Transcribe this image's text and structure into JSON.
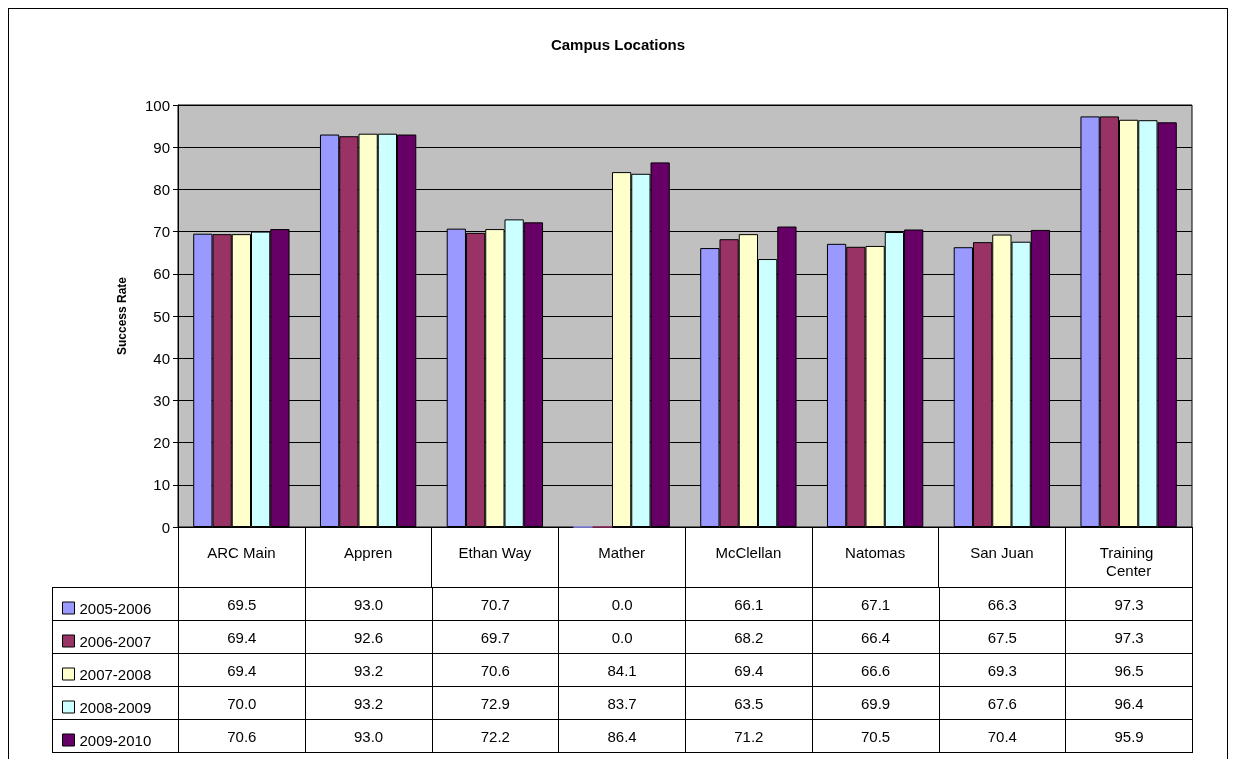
{
  "chart_data": {
    "type": "bar",
    "title": "Campus Locations",
    "ylabel": "Success Rate",
    "categories": [
      "ARC Main",
      "Appren",
      "Ethan Way",
      "Mather",
      "McClellan",
      "Natomas",
      "San Juan",
      "Training Center"
    ],
    "ylim": [
      0,
      100
    ],
    "yticks": [
      0,
      10,
      20,
      30,
      40,
      50,
      60,
      70,
      80,
      90,
      100
    ],
    "grid": "y",
    "legend": "bottom left",
    "series": [
      {
        "name": "2005-2006",
        "color": "#9999ff",
        "values": [
          69.5,
          93.0,
          70.7,
          0.0,
          66.1,
          67.1,
          66.3,
          97.3
        ],
        "value_labels": [
          "69.5",
          "93.0",
          "70.7",
          "0.0",
          "66.1",
          "67.1",
          "66.3",
          "97.3"
        ]
      },
      {
        "name": "2006-2007",
        "color": "#993366",
        "values": [
          69.4,
          92.6,
          69.7,
          0.0,
          68.2,
          66.4,
          67.5,
          97.3
        ],
        "value_labels": [
          "69.4",
          "92.6",
          "69.7",
          "0.0",
          "68.2",
          "66.4",
          "67.5",
          "97.3"
        ]
      },
      {
        "name": "2007-2008",
        "color": "#ffffcc",
        "values": [
          69.4,
          93.2,
          70.6,
          84.1,
          69.4,
          66.6,
          69.3,
          96.5
        ],
        "value_labels": [
          "69.4",
          "93.2",
          "70.6",
          "84.1",
          "69.4",
          "66.6",
          "69.3",
          "96.5"
        ]
      },
      {
        "name": "2008-2009",
        "color": "#ccffff",
        "values": [
          70.0,
          93.2,
          72.9,
          83.7,
          63.5,
          69.9,
          67.6,
          96.4
        ],
        "value_labels": [
          "70.0",
          "93.2",
          "72.9",
          "83.7",
          "63.5",
          "69.9",
          "67.6",
          "96.4"
        ]
      },
      {
        "name": "2009-2010",
        "color": "#660066",
        "values": [
          70.6,
          93.0,
          72.2,
          86.4,
          71.2,
          70.5,
          70.4,
          95.9
        ],
        "value_labels": [
          "70.6",
          "93.0",
          "72.2",
          "86.4",
          "71.2",
          "70.5",
          "70.4",
          "95.9"
        ]
      }
    ]
  }
}
